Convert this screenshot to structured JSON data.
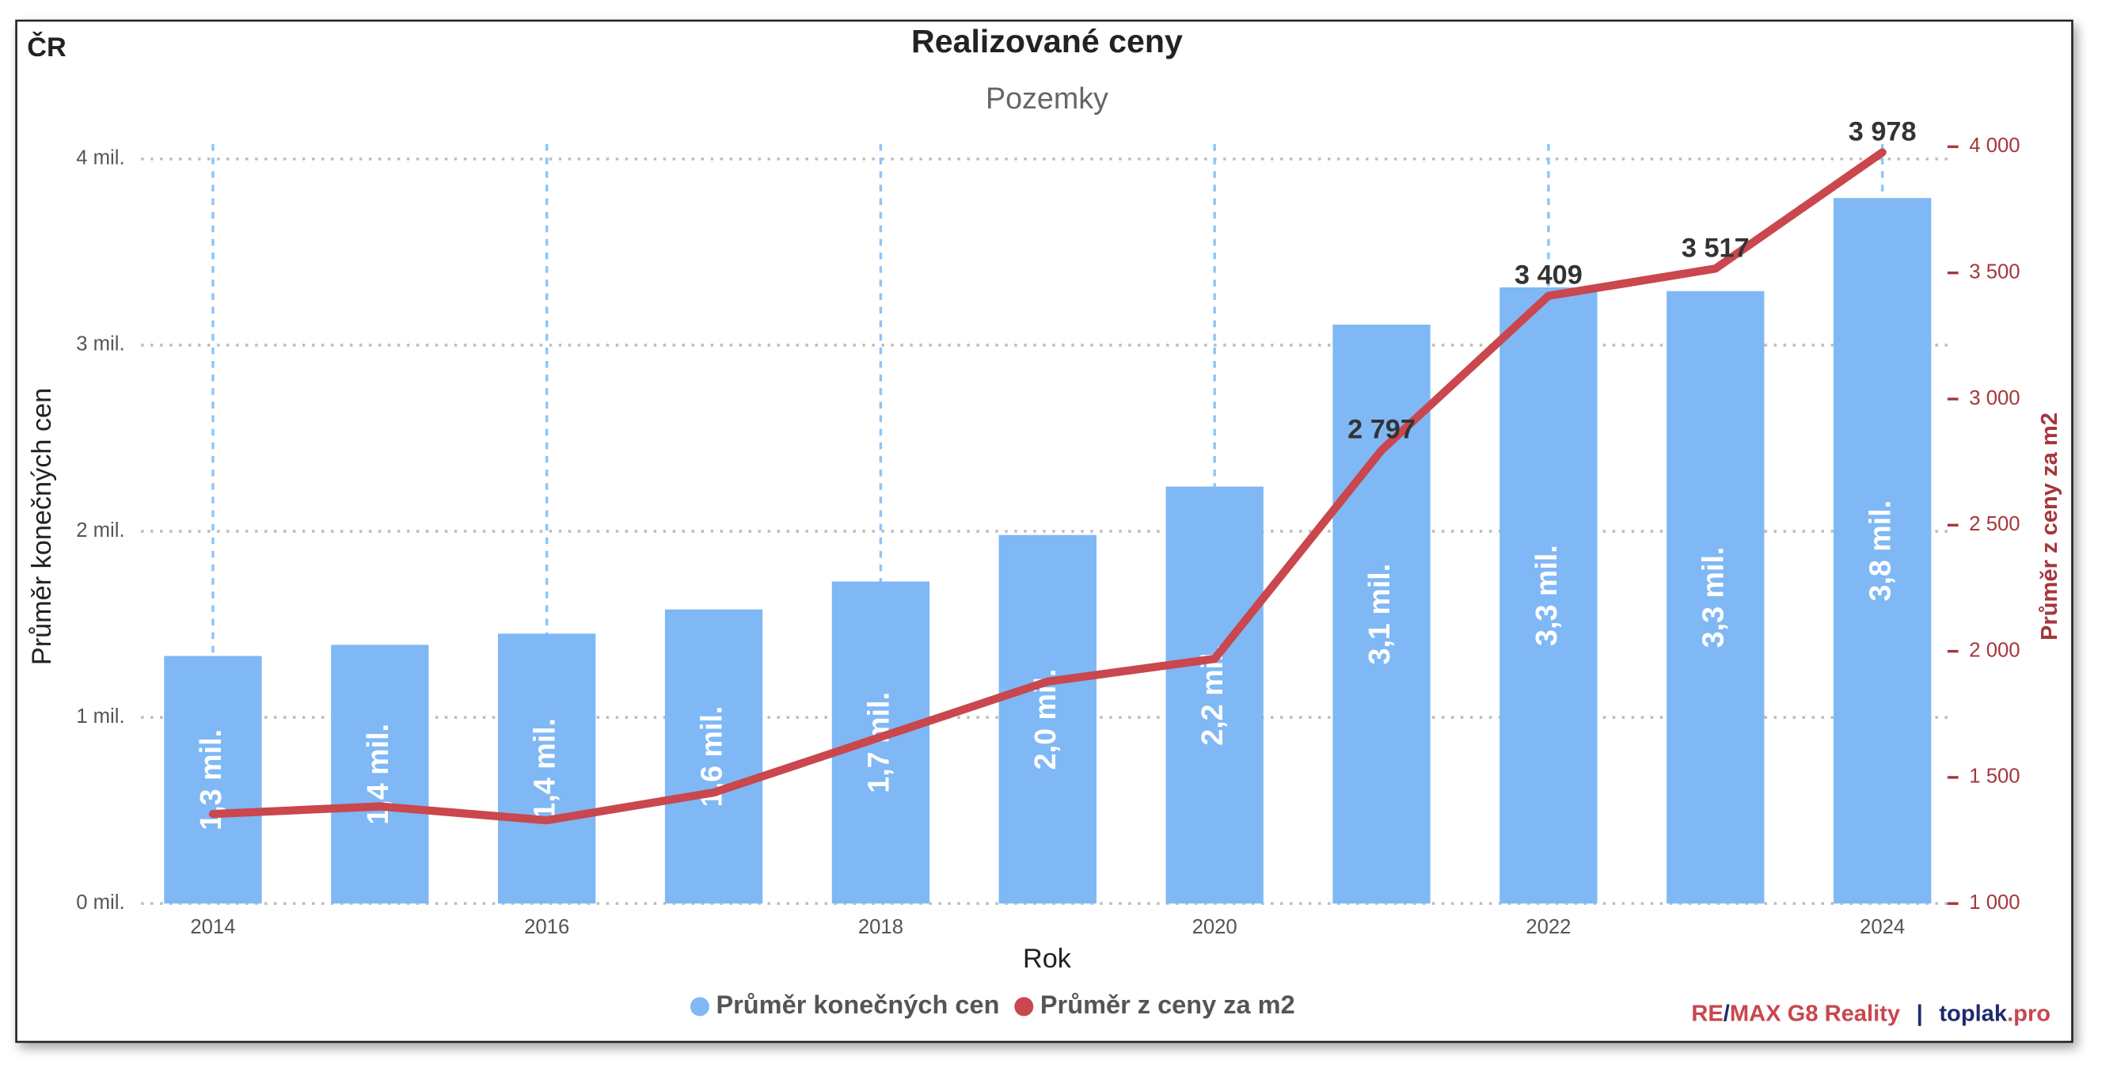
{
  "chart_data": {
    "type": "bar_line",
    "corner_label": "ČR",
    "title": "Realizované ceny",
    "subtitle": "Pozemky",
    "x_label": "Rok",
    "y_label": "Průměr konečných cen",
    "y2_label": "Průměr z ceny za m2",
    "categories": [
      "2014",
      null,
      "2016",
      null,
      "2018",
      null,
      "2020",
      null,
      "2022",
      null,
      "2024"
    ],
    "series": [
      {
        "name": "Průměr konečných cen",
        "type": "bar",
        "color": "#7fb8f5",
        "values": [
          1.33,
          1.39,
          1.45,
          1.58,
          1.73,
          1.98,
          2.24,
          3.11,
          3.31,
          3.29,
          3.79
        ],
        "value_labels": [
          "1,3 mil.",
          "1,4 mil.",
          "1,4 mil.",
          "1,6 mil.",
          "1,7 mil.",
          "2,0 mil.",
          "2,2 mil.",
          "3,1 mil.",
          "3,3 mil.",
          "3,3 mil.",
          "3,8 mil."
        ]
      },
      {
        "name": "Průměr z ceny za m2",
        "type": "line",
        "axis": "y2",
        "color": "#c9474d",
        "values": [
          1355,
          1385,
          1330,
          1440,
          1660,
          1880,
          1970,
          2797,
          3409,
          3517,
          3978
        ],
        "value_labels": [
          null,
          null,
          null,
          null,
          null,
          null,
          null,
          "2 797",
          "3 409",
          "3 517",
          "3 978"
        ]
      }
    ],
    "ylim": [
      0,
      4
    ],
    "yticks": [
      {
        "value": 0,
        "label": "0 mil."
      },
      {
        "value": 1,
        "label": "1 mil."
      },
      {
        "value": 2,
        "label": "2 mil."
      },
      {
        "value": 3,
        "label": "3 mil."
      },
      {
        "value": 4,
        "label": "4 mil."
      }
    ],
    "y2lim": [
      1000,
      4000
    ],
    "y2ticks": [
      {
        "value": 1000,
        "label": "1 000"
      },
      {
        "value": 1500,
        "label": "1 500"
      },
      {
        "value": 2000,
        "label": "2 000"
      },
      {
        "value": 2500,
        "label": "2 500"
      },
      {
        "value": 3000,
        "label": "3 000"
      },
      {
        "value": 3500,
        "label": "3 500"
      },
      {
        "value": 4000,
        "label": "4 000"
      }
    ],
    "grid": true,
    "legend": "bottom",
    "footer": [
      "RE",
      "/",
      "MAX G8 Reality",
      "|",
      "toplak",
      ".pro"
    ]
  }
}
